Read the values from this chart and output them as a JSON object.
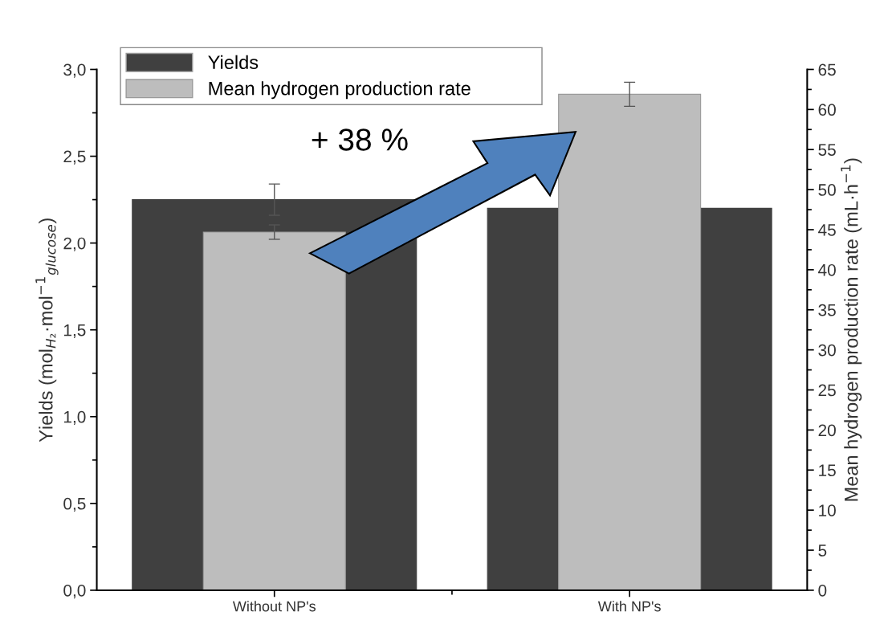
{
  "chart_data": {
    "type": "bar",
    "categories": [
      "Without NP's",
      "With NP's"
    ],
    "ylabel": "Yields (mol$_{H₂}$·mol$^{−1}$$_{glucose}$)",
    "y2label": "Mean hydrogen production rate (mL·h$^{−1}$)",
    "series": [
      {
        "name": "Yields",
        "color": "#404040",
        "values": [
          2.25,
          2.2
        ],
        "errors": [
          0.09,
          null
        ]
      },
      {
        "name": "Mean hydrogen production rate",
        "color": "#bdbdbd",
        "values": [
          44.7,
          61.9
        ],
        "errors": [
          0.9,
          1.5
        ],
        "axis": "y2"
      }
    ],
    "ylim": [
      0,
      3.0
    ],
    "yticks": [
      {
        "value": 0,
        "label": "0,0"
      },
      {
        "value": 0.5,
        "label": "0,5"
      },
      {
        "value": 1.0,
        "label": "1,0"
      },
      {
        "value": 1.5,
        "label": "1,5"
      },
      {
        "value": 2.0,
        "label": "2,0"
      },
      {
        "value": 2.5,
        "label": "2,5"
      },
      {
        "value": 3.0,
        "label": "3,0"
      }
    ],
    "y2lim": [
      0,
      65
    ],
    "y2ticks": [
      0,
      5,
      10,
      15,
      20,
      25,
      30,
      35,
      40,
      45,
      50,
      55,
      60,
      65
    ],
    "annotations": [
      "+ 38 %"
    ],
    "legend": "top",
    "grid": false
  }
}
